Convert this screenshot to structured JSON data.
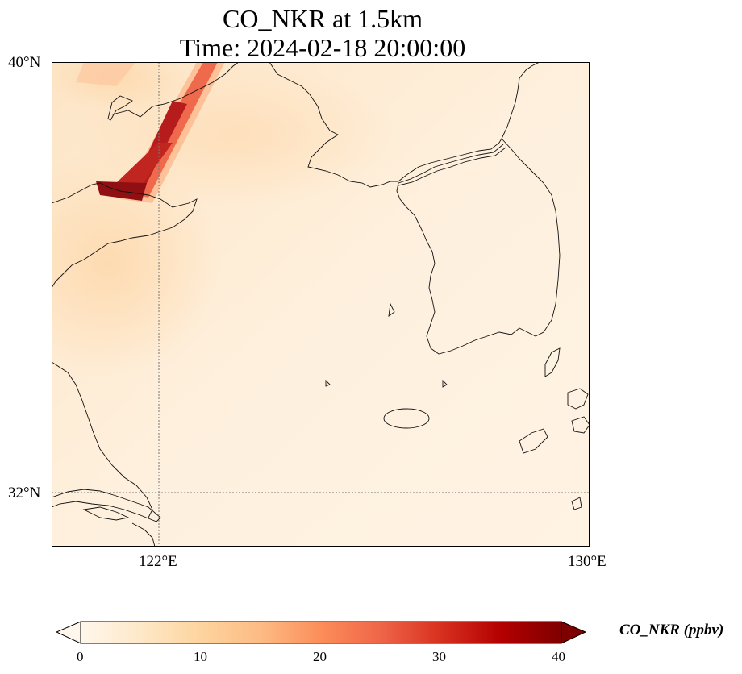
{
  "title": {
    "line1": "CO_NKR at 1.5km",
    "line2": "Time: 2024-02-18 20:00:00"
  },
  "map": {
    "extent": {
      "lon": [
        120.0,
        130.0
      ],
      "lat": [
        31.0,
        40.0
      ]
    },
    "variable": "CO_NKR",
    "height": "1.5km",
    "gridlines": {
      "lon": [
        122
      ],
      "lat": [
        32
      ]
    },
    "lat_labels": [
      "40°N",
      "32°N"
    ],
    "lon_labels": [
      "122°E",
      "130°E"
    ],
    "features": [
      "coastlines",
      "borders"
    ],
    "plume_note_colors": {
      "background": "#fdebd5",
      "plume_core": "#b71c1c",
      "plume_edge": "#ef6548"
    }
  },
  "colorbar": {
    "label": "CO_NKR (ppbv)",
    "cmap": "OrRd",
    "min": 0,
    "max": 40,
    "ticks": [
      "0",
      "10",
      "20",
      "30",
      "40"
    ],
    "extend": "both"
  }
}
